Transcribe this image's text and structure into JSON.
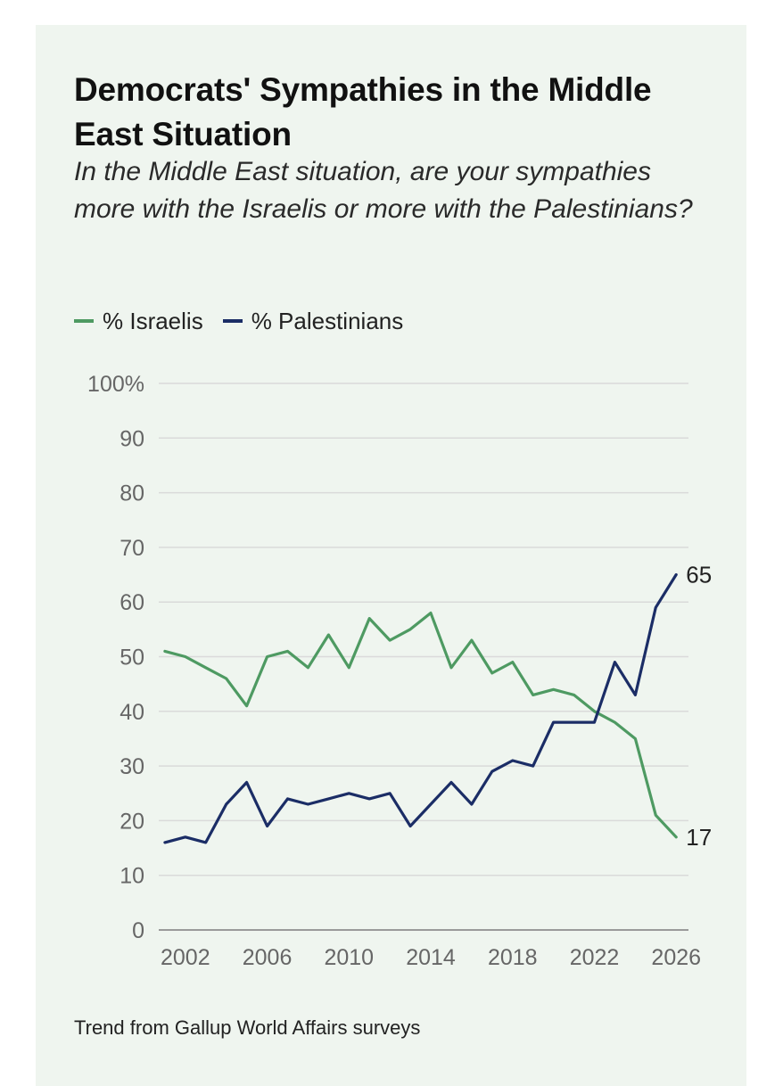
{
  "title": "Democrats' Sympathies in the Middle East Situation",
  "subtitle": "In the Middle East situation, are your sympathies more with the Israelis or more with the Palestinians?",
  "source": "Trend from Gallup World Affairs surveys",
  "colors": {
    "israelis": "#4e9a62",
    "palestinians": "#1b2d66",
    "background": "#eff5ef",
    "grid": "#dadada"
  },
  "chart_data": {
    "type": "line",
    "title": "Democrats' Sympathies in the Middle East Situation",
    "xlabel": "",
    "ylabel": "",
    "xlim": [
      2000.7,
      2026.6
    ],
    "ylim": [
      0,
      100
    ],
    "x_ticks": [
      2002,
      2006,
      2010,
      2014,
      2018,
      2022,
      2026
    ],
    "x_tick_labels": [
      "2002",
      "2006",
      "2010",
      "2014",
      "2018",
      "2022",
      "2026"
    ],
    "y_ticks": [
      0,
      10,
      20,
      30,
      40,
      50,
      60,
      70,
      80,
      90,
      100
    ],
    "y_tick_labels": [
      "0",
      "10",
      "20",
      "30",
      "40",
      "50",
      "60",
      "70",
      "80",
      "90",
      "100%"
    ],
    "grid": true,
    "legend_position": "top-left",
    "x": [
      2001,
      2002,
      2003,
      2004,
      2005,
      2006,
      2007,
      2008,
      2009,
      2010,
      2011,
      2012,
      2013,
      2014,
      2015,
      2016,
      2017,
      2018,
      2019,
      2020,
      2021,
      2022,
      2023,
      2024,
      2025,
      2026
    ],
    "series": [
      {
        "name": "% Israelis",
        "color": "#4e9a62",
        "values": [
          51,
          50,
          48,
          46,
          41,
          50,
          51,
          48,
          54,
          48,
          57,
          53,
          55,
          58,
          48,
          53,
          47,
          49,
          43,
          44,
          43,
          40,
          38,
          35,
          21,
          17
        ],
        "end_label": "17"
      },
      {
        "name": "% Palestinians",
        "color": "#1b2d66",
        "values": [
          16,
          17,
          16,
          23,
          27,
          19,
          24,
          23,
          24,
          25,
          24,
          25,
          19,
          23,
          27,
          23,
          29,
          31,
          30,
          38,
          38,
          38,
          49,
          43,
          59,
          65
        ],
        "end_label": "65"
      }
    ]
  }
}
